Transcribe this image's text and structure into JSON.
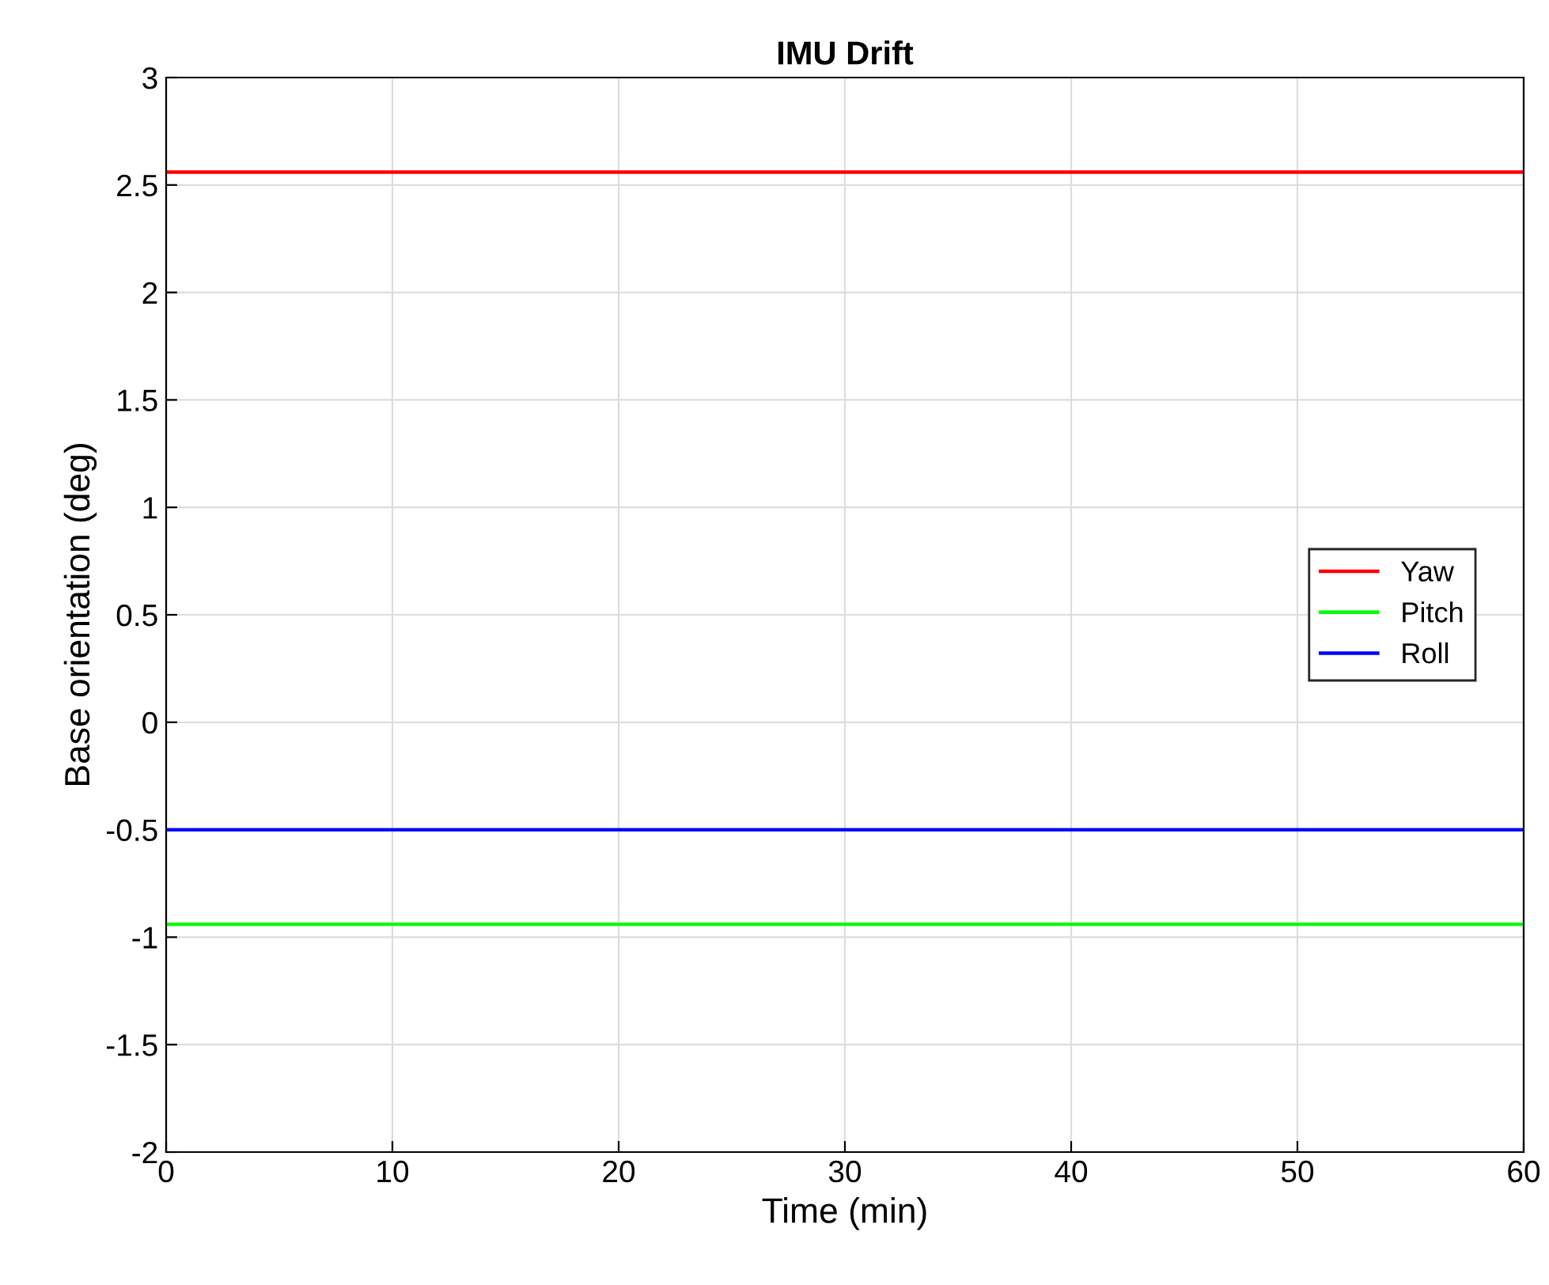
{
  "chart_data": {
    "type": "line",
    "title": "IMU Drift",
    "xlabel": "Time (min)",
    "ylabel": "Base orientation (deg)",
    "x": [
      0,
      60
    ],
    "series": [
      {
        "name": "Yaw",
        "color": "#ff0000",
        "values": [
          2.56,
          2.56
        ]
      },
      {
        "name": "Pitch",
        "color": "#00ff00",
        "values": [
          -0.94,
          -0.94
        ]
      },
      {
        "name": "Roll",
        "color": "#0000ff",
        "values": [
          -0.5,
          -0.5
        ]
      }
    ],
    "xlim": [
      0,
      60
    ],
    "xticks": [
      0,
      10,
      20,
      30,
      40,
      50,
      60
    ],
    "ylim": [
      -2,
      3
    ],
    "yticks": [
      -2,
      -1.5,
      -1,
      -0.5,
      0,
      0.5,
      1,
      1.5,
      2,
      2.5,
      3
    ],
    "grid": true,
    "legend": "right",
    "marker": "none",
    "line_style": "solid"
  }
}
